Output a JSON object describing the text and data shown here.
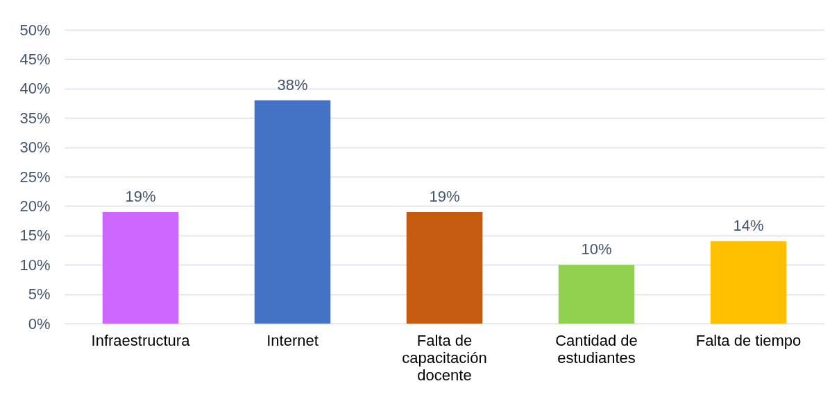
{
  "chart_data": {
    "type": "bar",
    "categories": [
      "Infraestructura",
      "Internet",
      "Falta de capacitación docente",
      "Cantidad de estudiantes",
      "Falta de tiempo"
    ],
    "values": [
      19,
      38,
      19,
      10,
      14
    ],
    "colors": [
      "#cc66ff",
      "#4472c4",
      "#c55a11",
      "#92d050",
      "#ffc000"
    ],
    "value_labels": [
      "19%",
      "38%",
      "19%",
      "10%",
      "14%"
    ],
    "ylim": [
      0,
      50
    ],
    "yticks": [
      {
        "value": 0,
        "label": "0%"
      },
      {
        "value": 5,
        "label": "5%"
      },
      {
        "value": 10,
        "label": "10%"
      },
      {
        "value": 15,
        "label": "15%"
      },
      {
        "value": 20,
        "label": "20%"
      },
      {
        "value": 25,
        "label": "25%"
      },
      {
        "value": 30,
        "label": "30%"
      },
      {
        "value": 35,
        "label": "35%"
      },
      {
        "value": 40,
        "label": "40%"
      },
      {
        "value": 45,
        "label": "45%"
      },
      {
        "value": 50,
        "label": "50%"
      }
    ],
    "grid": "y"
  }
}
